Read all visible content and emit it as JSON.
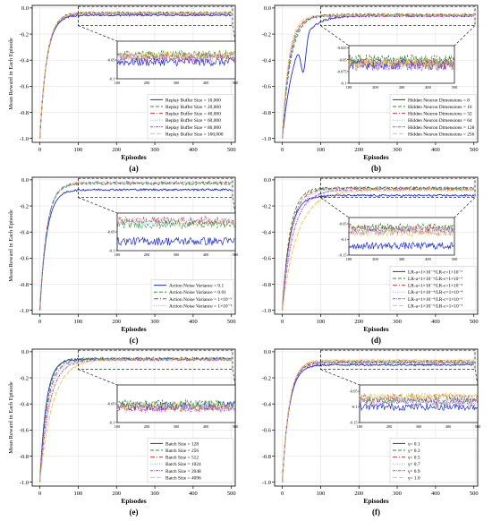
{
  "colors": [
    "#1f2fd1",
    "#2f8f2f",
    "#c0393b",
    "#7fbfe0",
    "#a04bd0",
    "#e6c84a"
  ],
  "dashes": [
    "",
    "4,2",
    "5,2,1,2",
    "1,1.5",
    "3,1,1,1",
    "5,2"
  ],
  "chart_data": [
    {
      "type": "line",
      "label": "(a)",
      "xlabel": "Episodes",
      "ylabel": "Mean Reward in Each Episode",
      "xlim": [
        -20,
        510
      ],
      "ylim": [
        -1.03,
        0.02
      ],
      "xticks": [
        0,
        100,
        200,
        300,
        400,
        500
      ],
      "yticks": [
        0.0,
        -0.2,
        -0.4,
        -0.6,
        -0.8,
        -1.0
      ],
      "inset": {
        "xlim": [
          100,
          500
        ],
        "ylim": [
          -0.1,
          0.0
        ],
        "yticks": [
          -0.05,
          -0.1
        ],
        "xticks": [
          100,
          200,
          300,
          400,
          500
        ]
      },
      "legend_loc": "lower-right",
      "series": [
        {
          "name": "Replay Buffer Size = 10,000",
          "plateau": -0.055,
          "rate": 0.055
        },
        {
          "name": "Replay Buffer Size = 20,000",
          "plateau": -0.035,
          "rate": 0.055
        },
        {
          "name": "Replay Buffer Size = 40,000",
          "plateau": -0.04,
          "rate": 0.055
        },
        {
          "name": "Replay Buffer Size = 60,000",
          "plateau": -0.042,
          "rate": 0.055
        },
        {
          "name": "Replay Buffer Size = 80,000",
          "plateau": -0.045,
          "rate": 0.055
        },
        {
          "name": "Replay Buffer Size = 100,000",
          "plateau": -0.038,
          "rate": 0.055
        }
      ]
    },
    {
      "type": "line",
      "label": "(b)",
      "xlabel": "Episodes",
      "ylabel": "",
      "xlim": [
        -20,
        510
      ],
      "ylim": [
        -1.03,
        0.02
      ],
      "xticks": [
        0,
        100,
        200,
        300,
        400,
        500
      ],
      "yticks": [
        0.0,
        -0.2,
        -0.4,
        -0.6,
        -0.8,
        -1.0
      ],
      "inset": {
        "xlim": [
          100,
          500
        ],
        "ylim": [
          -0.1,
          -0.02
        ],
        "yticks": [
          -0.025,
          -0.05,
          -0.075,
          -0.1
        ],
        "xticks": [
          100,
          200,
          300,
          400,
          500
        ]
      },
      "legend_loc": "lower-right",
      "series": [
        {
          "name": "Hidden Neuron Dimensions = 8",
          "plateau": -0.06,
          "rate": 0.03
        },
        {
          "name": "Hidden Neuron Dimensions = 16",
          "plateau": -0.05,
          "rate": 0.045
        },
        {
          "name": "Hidden Neuron Dimensions = 32",
          "plateau": -0.055,
          "rate": 0.05
        },
        {
          "name": "Hidden Neuron Dimensions = 64",
          "plateau": -0.058,
          "rate": 0.05
        },
        {
          "name": "Hidden Neuron Dimensions = 128",
          "plateau": -0.062,
          "rate": 0.055
        },
        {
          "name": "Hidden Neuron Dimensions = 256",
          "plateau": -0.057,
          "rate": 0.06
        }
      ]
    },
    {
      "type": "line",
      "label": "(c)",
      "xlabel": "Episodes",
      "ylabel": "Mean Reward in Each Episode",
      "xlim": [
        -20,
        510
      ],
      "ylim": [
        -1.03,
        0.02
      ],
      "xticks": [
        0,
        100,
        200,
        300,
        400,
        500
      ],
      "yticks": [
        0.0,
        -0.2,
        -0.4,
        -0.6,
        -0.8,
        -1.0
      ],
      "inset": {
        "xlim": [
          100,
          500
        ],
        "ylim": [
          -0.1,
          0.0
        ],
        "yticks": [
          -0.05,
          -0.1
        ],
        "xticks": [
          100,
          200,
          300,
          400,
          500
        ]
      },
      "legend_loc": "lower-right",
      "series": [
        {
          "name": "Action Noise Variance = 0.1",
          "plateau": -0.075,
          "rate": 0.055
        },
        {
          "name": "Action Noise Variance = 0.01",
          "plateau": -0.03,
          "rate": 0.055
        },
        {
          "name": "Action Noise Variance = 1×10⁻³",
          "plateau": -0.02,
          "rate": 0.055
        },
        {
          "name": "Action Noise Variance = 1×10⁻⁴",
          "plateau": -0.022,
          "rate": 0.055
        }
      ]
    },
    {
      "type": "line",
      "label": "(d)",
      "xlabel": "Episodes",
      "ylabel": "",
      "xlim": [
        -20,
        510
      ],
      "ylim": [
        -1.03,
        0.02
      ],
      "xticks": [
        0,
        100,
        200,
        300,
        400,
        500
      ],
      "yticks": [
        0.0,
        -0.2,
        -0.4,
        -0.6,
        -0.8,
        -1.0
      ],
      "inset": {
        "xlim": [
          100,
          500
        ],
        "ylim": [
          -0.15,
          -0.03
        ],
        "yticks": [
          -0.05,
          -0.1,
          -0.15
        ],
        "xticks": [
          100,
          200,
          300,
          400,
          500
        ]
      },
      "legend_loc": "lower-right",
      "series": [
        {
          "name": "LR-a=1×10⁻³/LR-c=1×10⁻²",
          "plateau": -0.12,
          "rate": 0.05
        },
        {
          "name": "LR-a=1×10⁻³/LR-c=1×10⁻³",
          "plateau": -0.06,
          "rate": 0.05
        },
        {
          "name": "LR-a=1×10⁻³/LR-c=1×10⁻⁴",
          "plateau": -0.065,
          "rate": 0.045
        },
        {
          "name": "LR-a=1×10⁻⁴/LR-c=1×10⁻⁴",
          "plateau": -0.07,
          "rate": 0.04
        },
        {
          "name": "LR-a=1×10⁻⁴/LR-c=1×10⁻⁵",
          "plateau": -0.075,
          "rate": 0.035
        },
        {
          "name": "LR-a=1×10⁻⁵/LR-c=1×10⁻⁵",
          "plateau": -0.08,
          "rate": 0.025
        }
      ]
    },
    {
      "type": "line",
      "label": "(e)",
      "xlabel": "Episodes",
      "ylabel": "Mean Reward in Each Episode",
      "xlim": [
        -20,
        510
      ],
      "ylim": [
        -1.03,
        0.02
      ],
      "xticks": [
        0,
        100,
        200,
        300,
        400,
        500
      ],
      "yticks": [
        0.0,
        -0.2,
        -0.4,
        -0.6,
        -0.8,
        -1.0
      ],
      "inset": {
        "xlim": [
          100,
          500
        ],
        "ylim": [
          -0.1,
          0.0
        ],
        "yticks": [
          -0.05,
          -0.1
        ],
        "xticks": [
          100,
          200,
          300,
          400,
          500
        ]
      },
      "legend_loc": "lower-right",
      "series": [
        {
          "name": "Batch Size = 128",
          "plateau": -0.055,
          "rate": 0.06
        },
        {
          "name": "Batch Size = 256",
          "plateau": -0.05,
          "rate": 0.055
        },
        {
          "name": "Batch Size = 512",
          "plateau": -0.06,
          "rate": 0.05
        },
        {
          "name": "Batch Size = 1024",
          "plateau": -0.058,
          "rate": 0.045
        },
        {
          "name": "Batch Size = 2048",
          "plateau": -0.062,
          "rate": 0.04
        },
        {
          "name": "Batch Size = 4096",
          "plateau": -0.057,
          "rate": 0.03
        }
      ]
    },
    {
      "type": "line",
      "label": "(f)",
      "xlabel": "Episodes",
      "ylabel": "",
      "xlim": [
        -20,
        510
      ],
      "ylim": [
        -1.03,
        0.02
      ],
      "xticks": [
        0,
        100,
        200,
        300,
        400,
        500
      ],
      "yticks": [
        0.0,
        -0.2,
        -0.4,
        -0.6,
        -0.8,
        -1.0
      ],
      "inset": {
        "xlim": [
          100,
          500
        ],
        "ylim": [
          -0.15,
          -0.03
        ],
        "yticks": [
          -0.05,
          -0.1,
          -0.15
        ],
        "xticks": [
          100,
          200,
          300,
          400,
          500
        ]
      },
      "legend_loc": "lower-right",
      "series": [
        {
          "name": "γ= 0.1",
          "plateau": -0.1,
          "rate": 0.055
        },
        {
          "name": "γ= 0.3",
          "plateau": -0.08,
          "rate": 0.055
        },
        {
          "name": "γ= 0.5",
          "plateau": -0.07,
          "rate": 0.055
        },
        {
          "name": "γ= 0.7",
          "plateau": -0.075,
          "rate": 0.055
        },
        {
          "name": "γ= 0.9",
          "plateau": -0.085,
          "rate": 0.055
        },
        {
          "name": "γ= 1.0",
          "plateau": -0.065,
          "rate": 0.055
        }
      ]
    }
  ]
}
